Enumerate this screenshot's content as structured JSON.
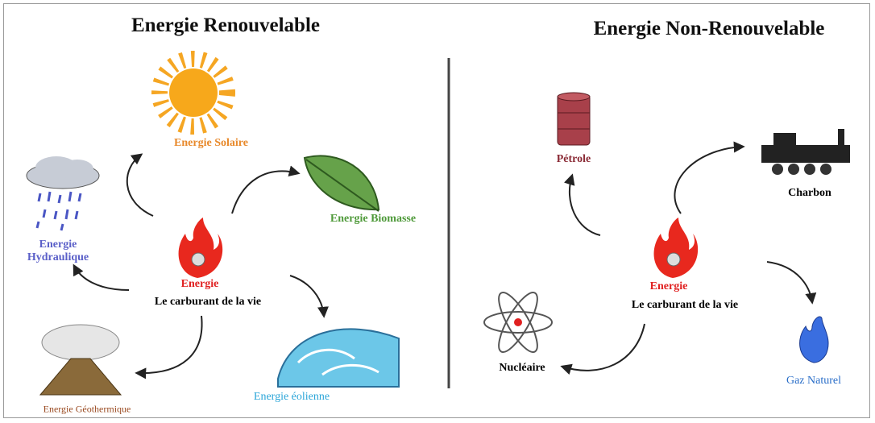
{
  "left": {
    "title": "Energie Renouvelable",
    "center": {
      "title": "Energie",
      "subtitle": "Le carburant de la vie"
    },
    "nodes": [
      {
        "label": "Energie Solaire"
      },
      {
        "label": "Energie Biomasse"
      },
      {
        "label": "Energie Hydraulique"
      },
      {
        "label": "Energie Géothermique"
      },
      {
        "label": "Energie éolienne"
      }
    ]
  },
  "right": {
    "title": "Energie Non-Renouvelable",
    "center": {
      "title": "Energie",
      "subtitle": "Le carburant de la vie"
    },
    "nodes": [
      {
        "label": "Pétrole"
      },
      {
        "label": "Charbon"
      },
      {
        "label": "Nucléaire"
      },
      {
        "label": "Gaz Naturel"
      }
    ]
  }
}
